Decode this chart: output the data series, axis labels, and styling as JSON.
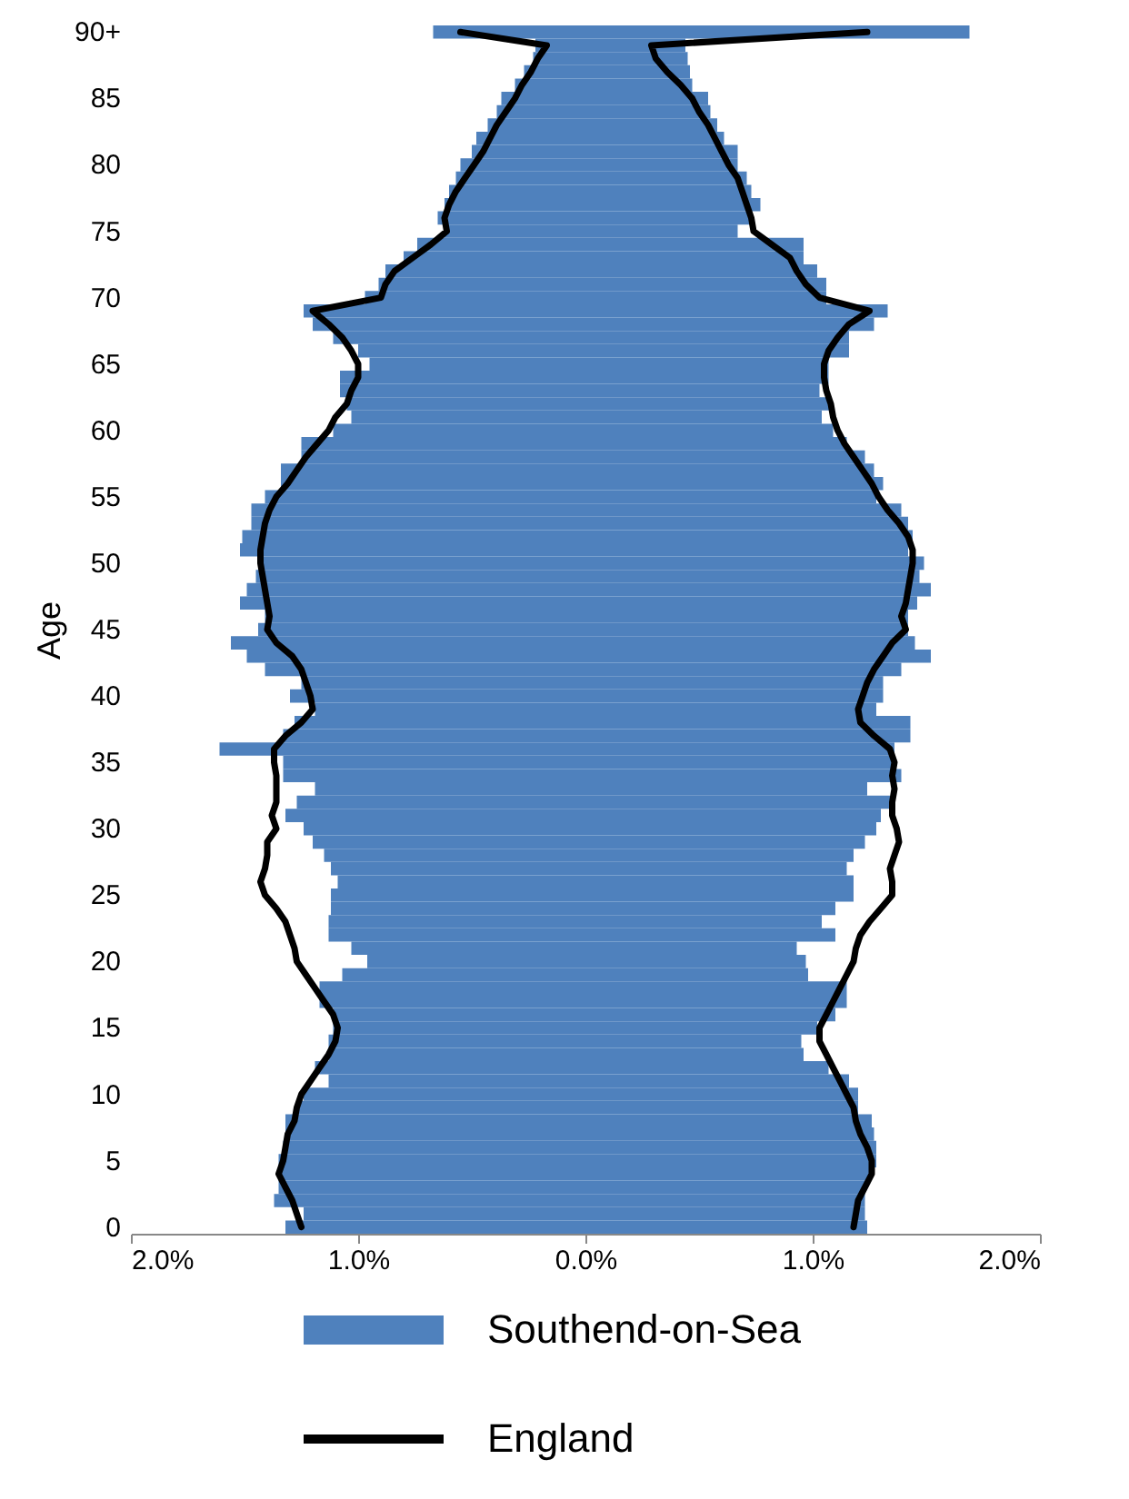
{
  "chart_data": {
    "type": "bar",
    "orientation": "horizontal",
    "stacked": true,
    "ylabel": "Age",
    "legend": "bottom",
    "categories": [
      "90+",
      null,
      null,
      null,
      null,
      "85",
      null,
      null,
      null,
      null,
      "80",
      null,
      null,
      null,
      null,
      "75",
      null,
      null,
      null,
      null,
      "70",
      null,
      null,
      null,
      null,
      "65",
      null,
      null,
      null,
      null,
      "60",
      null,
      null,
      null,
      null,
      "55",
      null,
      null,
      null,
      null,
      "50",
      null,
      null,
      null,
      null,
      "45",
      null,
      null,
      null,
      null,
      "40",
      null,
      null,
      null,
      null,
      "35",
      null,
      null,
      null,
      null,
      "30",
      null,
      null,
      null,
      null,
      "25",
      null,
      null,
      null,
      null,
      "20",
      null,
      null,
      null,
      null,
      "15",
      null,
      null,
      null,
      null,
      "10",
      null,
      null,
      null,
      null,
      "5",
      null,
      null,
      null,
      null,
      "0"
    ],
    "xlim": [
      -2,
      2
    ],
    "xticks": [
      {
        "value": -2,
        "label": "2.0%"
      },
      {
        "value": -1,
        "label": "1.0%"
      },
      {
        "value": 0,
        "label": "0.0%"
      },
      {
        "value": 1,
        "label": "1.0%"
      },
      {
        "value": 2,
        "label": "2.0%"
      }
    ],
    "series": [
      {
        "name": "Southend-on-Sea",
        "type": "bar",
        "color": "#4f81bd",
        "values": [
          -0.67,
          -0.22,
          -0.23,
          -0.27,
          -0.31,
          -0.37,
          -0.39,
          -0.43,
          -0.48,
          -0.5,
          -0.55,
          -0.57,
          -0.6,
          -0.62,
          -0.65,
          -0.62,
          -0.74,
          -0.8,
          -0.88,
          -0.91,
          -0.97,
          -1.24,
          -1.2,
          -1.11,
          -1.0,
          -0.95,
          -1.08,
          -1.08,
          -1.05,
          -1.03,
          -1.11,
          -1.25,
          -1.25,
          -1.34,
          -1.34,
          -1.41,
          -1.47,
          -1.47,
          -1.51,
          -1.52,
          -1.42,
          -1.45,
          -1.49,
          -1.52,
          -1.41,
          -1.44,
          -1.56,
          -1.49,
          -1.41,
          -1.25,
          -1.3,
          -1.19,
          -1.28,
          -1.33,
          -1.61,
          -1.33,
          -1.33,
          -1.19,
          -1.27,
          -1.32,
          -1.24,
          -1.2,
          -1.15,
          -1.12,
          -1.09,
          -1.12,
          -1.12,
          -1.13,
          -1.13,
          -1.03,
          -0.96,
          -1.07,
          -1.17,
          -1.17,
          -1.11,
          -1.11,
          -1.13,
          -1.13,
          -1.19,
          -1.13,
          -1.24,
          -1.27,
          -1.32,
          -1.32,
          -1.33,
          -1.35,
          -1.35,
          -1.35,
          -1.37,
          -1.24,
          -1.32
        ]
      },
      {
        "type": "bar",
        "color": "#4f81bd",
        "values": [
          1.69,
          0.44,
          0.45,
          0.46,
          0.47,
          0.54,
          0.55,
          0.58,
          0.61,
          0.67,
          0.67,
          0.71,
          0.73,
          0.77,
          0.73,
          0.67,
          0.96,
          0.96,
          1.02,
          1.06,
          1.06,
          1.33,
          1.27,
          1.16,
          1.16,
          1.07,
          1.07,
          1.03,
          1.08,
          1.04,
          1.09,
          1.15,
          1.23,
          1.27,
          1.31,
          1.28,
          1.39,
          1.42,
          1.44,
          1.42,
          1.49,
          1.47,
          1.52,
          1.46,
          1.42,
          1.42,
          1.45,
          1.52,
          1.39,
          1.31,
          1.31,
          1.28,
          1.43,
          1.43,
          1.36,
          1.36,
          1.39,
          1.24,
          1.34,
          1.3,
          1.28,
          1.23,
          1.18,
          1.15,
          1.18,
          1.18,
          1.1,
          1.04,
          1.1,
          0.93,
          0.97,
          0.98,
          1.15,
          1.15,
          1.1,
          1.02,
          0.95,
          0.96,
          1.07,
          1.16,
          1.2,
          1.2,
          1.26,
          1.27,
          1.28,
          1.28,
          1.26,
          1.23,
          1.23,
          1.23,
          1.24
        ]
      },
      {
        "name": "England",
        "type": "line",
        "color": "#000000",
        "values": [
          -0.55,
          -0.17,
          -0.21,
          -0.24,
          -0.28,
          -0.31,
          -0.35,
          -0.39,
          -0.42,
          -0.45,
          -0.49,
          -0.53,
          -0.57,
          -0.6,
          -0.62,
          -0.61,
          -0.68,
          -0.76,
          -0.84,
          -0.88,
          -0.9,
          -1.2,
          -1.13,
          -1.07,
          -1.03,
          -1.0,
          -1.0,
          -1.03,
          -1.05,
          -1.1,
          -1.13,
          -1.18,
          -1.23,
          -1.27,
          -1.31,
          -1.36,
          -1.39,
          -1.41,
          -1.42,
          -1.43,
          -1.43,
          -1.42,
          -1.41,
          -1.4,
          -1.39,
          -1.4,
          -1.36,
          -1.29,
          -1.25,
          -1.23,
          -1.21,
          -1.2,
          -1.25,
          -1.32,
          -1.37,
          -1.37,
          -1.36,
          -1.36,
          -1.36,
          -1.38,
          -1.36,
          -1.4,
          -1.4,
          -1.41,
          -1.43,
          -1.41,
          -1.36,
          -1.32,
          -1.3,
          -1.28,
          -1.27,
          -1.23,
          -1.19,
          -1.15,
          -1.11,
          -1.09,
          -1.1,
          -1.13,
          -1.17,
          -1.21,
          -1.25,
          -1.27,
          -1.28,
          -1.31,
          -1.32,
          -1.33,
          -1.35,
          -1.32,
          -1.29,
          -1.27,
          -1.25
        ]
      },
      {
        "type": "line",
        "color": "#000000",
        "values": [
          1.24,
          0.29,
          0.31,
          0.36,
          0.42,
          0.47,
          0.5,
          0.54,
          0.57,
          0.6,
          0.63,
          0.67,
          0.69,
          0.71,
          0.73,
          0.74,
          0.82,
          0.9,
          0.93,
          0.97,
          1.03,
          1.25,
          1.16,
          1.11,
          1.07,
          1.05,
          1.05,
          1.06,
          1.08,
          1.09,
          1.11,
          1.14,
          1.18,
          1.22,
          1.26,
          1.29,
          1.33,
          1.38,
          1.42,
          1.44,
          1.44,
          1.43,
          1.42,
          1.41,
          1.39,
          1.41,
          1.35,
          1.31,
          1.27,
          1.24,
          1.22,
          1.2,
          1.21,
          1.27,
          1.34,
          1.36,
          1.35,
          1.36,
          1.35,
          1.35,
          1.37,
          1.38,
          1.36,
          1.34,
          1.35,
          1.35,
          1.3,
          1.25,
          1.21,
          1.19,
          1.18,
          1.15,
          1.12,
          1.09,
          1.06,
          1.03,
          1.03,
          1.06,
          1.09,
          1.12,
          1.15,
          1.18,
          1.19,
          1.21,
          1.24,
          1.26,
          1.26,
          1.23,
          1.2,
          1.19,
          1.18
        ]
      }
    ]
  }
}
